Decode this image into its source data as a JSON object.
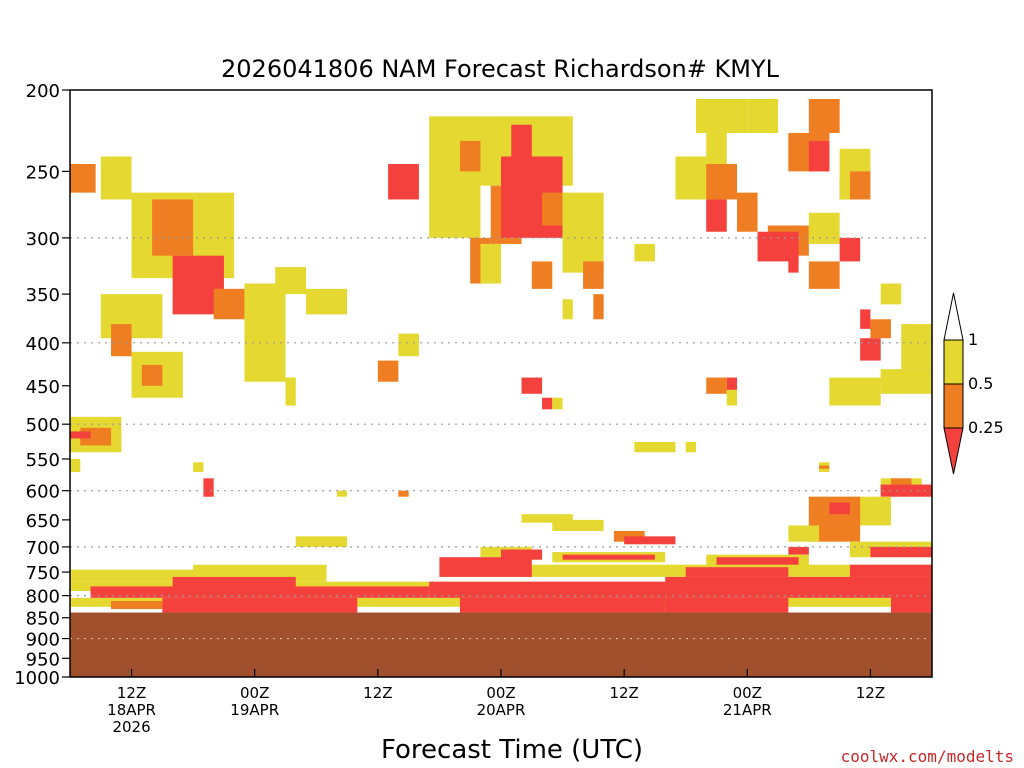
{
  "chart_data": {
    "type": "heatmap",
    "title": "2026041806 NAM Forecast Richardson# KMYL",
    "xlabel": "Forecast Time (UTC)",
    "credit": "coolwx.com/modelts",
    "y_scale": "log-pressure",
    "ylim": [
      1000,
      200
    ],
    "yticks": [
      200,
      250,
      300,
      350,
      400,
      450,
      500,
      550,
      600,
      650,
      700,
      750,
      800,
      850,
      900,
      950,
      1000
    ],
    "y_gridlines": [
      300,
      400,
      500,
      600,
      700,
      800,
      900,
      1000
    ],
    "xlim_hours": [
      0,
      84
    ],
    "xticks": [
      {
        "hour": 6,
        "lines": [
          "12Z",
          "18APR",
          "2026"
        ]
      },
      {
        "hour": 18,
        "lines": [
          "00Z",
          "19APR"
        ]
      },
      {
        "hour": 30,
        "lines": [
          "12Z"
        ]
      },
      {
        "hour": 42,
        "lines": [
          "00Z",
          "20APR"
        ]
      },
      {
        "hour": 54,
        "lines": [
          "12Z"
        ]
      },
      {
        "hour": 66,
        "lines": [
          "00Z",
          "21APR"
        ]
      },
      {
        "hour": 78,
        "lines": [
          "12Z"
        ]
      }
    ],
    "colorbar": {
      "bounds": [
        "1",
        "0.5",
        "0.25"
      ],
      "colors": {
        "yellow": "#e4d831",
        "orange": "#ef7e22",
        "red": "#f5413d",
        "ground": "#a0502c"
      }
    },
    "ground_level_hPa": 838,
    "regions": [
      {
        "level": "yellow",
        "t0": 3,
        "t1": 6,
        "p0": 240,
        "p1": 270
      },
      {
        "level": "orange",
        "t0": 0,
        "t1": 2.5,
        "p0": 245,
        "p1": 265
      },
      {
        "level": "yellow",
        "t0": 6,
        "t1": 16,
        "p0": 265,
        "p1": 335
      },
      {
        "level": "orange",
        "t0": 8,
        "t1": 12,
        "p0": 270,
        "p1": 315
      },
      {
        "level": "red",
        "t0": 10,
        "t1": 15,
        "p0": 315,
        "p1": 370
      },
      {
        "level": "orange",
        "t0": 14,
        "t1": 17,
        "p0": 345,
        "p1": 375
      },
      {
        "level": "yellow",
        "t0": 17,
        "t1": 21,
        "p0": 340,
        "p1": 445
      },
      {
        "level": "yellow",
        "t0": 3,
        "t1": 9,
        "p0": 350,
        "p1": 395
      },
      {
        "level": "orange",
        "t0": 4,
        "t1": 6,
        "p0": 380,
        "p1": 415
      },
      {
        "level": "yellow",
        "t0": 6,
        "t1": 11,
        "p0": 410,
        "p1": 465
      },
      {
        "level": "orange",
        "t0": 7,
        "t1": 9,
        "p0": 425,
        "p1": 450
      },
      {
        "level": "yellow",
        "t0": 20,
        "t1": 23,
        "p0": 325,
        "p1": 350
      },
      {
        "level": "yellow",
        "t0": 23,
        "t1": 27,
        "p0": 345,
        "p1": 370
      },
      {
        "level": "yellow",
        "t0": 21,
        "t1": 22,
        "p0": 440,
        "p1": 475
      },
      {
        "level": "yellow",
        "t0": 32,
        "t1": 34,
        "p0": 390,
        "p1": 415
      },
      {
        "level": "orange",
        "t0": 30,
        "t1": 32,
        "p0": 420,
        "p1": 445
      },
      {
        "level": "yellow",
        "t0": 35,
        "t1": 40,
        "p0": 215,
        "p1": 300
      },
      {
        "level": "orange",
        "t0": 38,
        "t1": 41,
        "p0": 230,
        "p1": 250
      },
      {
        "level": "orange",
        "t0": 39,
        "t1": 41,
        "p0": 300,
        "p1": 340
      },
      {
        "level": "red",
        "t0": 31,
        "t1": 34,
        "p0": 245,
        "p1": 270
      },
      {
        "level": "yellow",
        "t0": 40,
        "t1": 49,
        "p0": 215,
        "p1": 260
      },
      {
        "level": "orange",
        "t0": 41,
        "t1": 44,
        "p0": 260,
        "p1": 305
      },
      {
        "level": "red",
        "t0": 42,
        "t1": 48,
        "p0": 240,
        "p1": 300
      },
      {
        "level": "red",
        "t0": 43,
        "t1": 45,
        "p0": 220,
        "p1": 250
      },
      {
        "level": "yellow",
        "t0": 40,
        "t1": 42,
        "p0": 305,
        "p1": 340
      },
      {
        "level": "red",
        "t0": 49,
        "t1": 51,
        "p0": 290,
        "p1": 325
      },
      {
        "level": "orange",
        "t0": 46,
        "t1": 48,
        "p0": 265,
        "p1": 290
      },
      {
        "level": "yellow",
        "t0": 48,
        "t1": 52,
        "p0": 265,
        "p1": 330
      },
      {
        "level": "orange",
        "t0": 50,
        "t1": 52,
        "p0": 320,
        "p1": 345
      },
      {
        "level": "orange",
        "t0": 45,
        "t1": 47,
        "p0": 320,
        "p1": 345
      },
      {
        "level": "orange",
        "t0": 51,
        "t1": 52,
        "p0": 350,
        "p1": 375
      },
      {
        "level": "yellow",
        "t0": 48,
        "t1": 49,
        "p0": 355,
        "p1": 375
      },
      {
        "level": "red",
        "t0": 44,
        "t1": 46,
        "p0": 440,
        "p1": 460
      },
      {
        "level": "red",
        "t0": 46,
        "t1": 47,
        "p0": 465,
        "p1": 480
      },
      {
        "level": "yellow",
        "t0": 47,
        "t1": 48,
        "p0": 465,
        "p1": 480
      },
      {
        "level": "yellow",
        "t0": 61,
        "t1": 66,
        "p0": 205,
        "p1": 225
      },
      {
        "level": "yellow",
        "t0": 62,
        "t1": 64,
        "p0": 225,
        "p1": 245
      },
      {
        "level": "orange",
        "t0": 61,
        "t1": 65,
        "p0": 245,
        "p1": 270
      },
      {
        "level": "yellow",
        "t0": 59,
        "t1": 62,
        "p0": 240,
        "p1": 270
      },
      {
        "level": "red",
        "t0": 62,
        "t1": 64,
        "p0": 270,
        "p1": 295
      },
      {
        "level": "orange",
        "t0": 65,
        "t1": 67,
        "p0": 265,
        "p1": 295
      },
      {
        "level": "yellow",
        "t0": 66,
        "t1": 69,
        "p0": 205,
        "p1": 225
      },
      {
        "level": "orange",
        "t0": 72,
        "t1": 75,
        "p0": 205,
        "p1": 225
      },
      {
        "level": "orange",
        "t0": 70,
        "t1": 74,
        "p0": 225,
        "p1": 250
      },
      {
        "level": "red",
        "t0": 72,
        "t1": 74,
        "p0": 230,
        "p1": 250
      },
      {
        "level": "red",
        "t0": 75,
        "t1": 77,
        "p0": 255,
        "p1": 270
      },
      {
        "level": "yellow",
        "t0": 75,
        "t1": 78,
        "p0": 235,
        "p1": 270
      },
      {
        "level": "orange",
        "t0": 76,
        "t1": 78,
        "p0": 250,
        "p1": 270
      },
      {
        "level": "orange",
        "t0": 68,
        "t1": 72,
        "p0": 290,
        "p1": 315
      },
      {
        "level": "red",
        "t0": 67,
        "t1": 71,
        "p0": 295,
        "p1": 320
      },
      {
        "level": "red",
        "t0": 70,
        "t1": 71,
        "p0": 310,
        "p1": 330
      },
      {
        "level": "yellow",
        "t0": 72,
        "t1": 75,
        "p0": 280,
        "p1": 305
      },
      {
        "level": "red",
        "t0": 75,
        "t1": 77,
        "p0": 300,
        "p1": 320
      },
      {
        "level": "orange",
        "t0": 72,
        "t1": 75,
        "p0": 320,
        "p1": 345
      },
      {
        "level": "yellow",
        "t0": 55,
        "t1": 57,
        "p0": 305,
        "p1": 320
      },
      {
        "level": "yellow",
        "t0": 81,
        "t1": 84,
        "p0": 380,
        "p1": 430
      },
      {
        "level": "red",
        "t0": 77,
        "t1": 79,
        "p0": 395,
        "p1": 420
      },
      {
        "level": "orange",
        "t0": 78,
        "t1": 80,
        "p0": 375,
        "p1": 395
      },
      {
        "level": "red",
        "t0": 77,
        "t1": 78,
        "p0": 365,
        "p1": 385
      },
      {
        "level": "yellow",
        "t0": 74,
        "t1": 79,
        "p0": 440,
        "p1": 475
      },
      {
        "level": "yellow",
        "t0": 79,
        "t1": 84,
        "p0": 430,
        "p1": 460
      },
      {
        "level": "yellow",
        "t0": 79,
        "t1": 81,
        "p0": 340,
        "p1": 360
      },
      {
        "level": "orange",
        "t0": 62,
        "t1": 64,
        "p0": 440,
        "p1": 460
      },
      {
        "level": "yellow",
        "t0": 64,
        "t1": 65,
        "p0": 440,
        "p1": 475
      },
      {
        "level": "red",
        "t0": 64,
        "t1": 65,
        "p0": 440,
        "p1": 455
      },
      {
        "level": "yellow",
        "t0": 0,
        "t1": 5,
        "p0": 490,
        "p1": 540
      },
      {
        "level": "orange",
        "t0": 1,
        "t1": 4,
        "p0": 505,
        "p1": 530
      },
      {
        "level": "red",
        "t0": 0,
        "t1": 2,
        "p0": 510,
        "p1": 520
      },
      {
        "level": "yellow",
        "t0": 0,
        "t1": 1,
        "p0": 550,
        "p1": 570
      },
      {
        "level": "yellow",
        "t0": 55,
        "t1": 59,
        "p0": 525,
        "p1": 540
      },
      {
        "level": "yellow",
        "t0": 60,
        "t1": 61,
        "p0": 525,
        "p1": 540
      },
      {
        "level": "red",
        "t0": 13,
        "t1": 14,
        "p0": 580,
        "p1": 610
      },
      {
        "level": "yellow",
        "t0": 12,
        "t1": 13,
        "p0": 555,
        "p1": 570
      },
      {
        "level": "yellow",
        "t0": 73,
        "t1": 74,
        "p0": 555,
        "p1": 570
      },
      {
        "level": "orange",
        "t0": 73,
        "t1": 74,
        "p0": 560,
        "p1": 565
      },
      {
        "level": "orange",
        "t0": 32,
        "t1": 33,
        "p0": 600,
        "p1": 610
      },
      {
        "level": "yellow",
        "t0": 26,
        "t1": 27,
        "p0": 600,
        "p1": 610
      },
      {
        "level": "yellow",
        "t0": 79,
        "t1": 83,
        "p0": 580,
        "p1": 605
      },
      {
        "level": "red",
        "t0": 79,
        "t1": 84,
        "p0": 590,
        "p1": 610
      },
      {
        "level": "orange",
        "t0": 80,
        "t1": 82,
        "p0": 580,
        "p1": 590
      },
      {
        "level": "yellow",
        "t0": 72,
        "t1": 80,
        "p0": 610,
        "p1": 660
      },
      {
        "level": "orange",
        "t0": 72,
        "t1": 77,
        "p0": 610,
        "p1": 690
      },
      {
        "level": "red",
        "t0": 74,
        "t1": 76,
        "p0": 620,
        "p1": 640
      },
      {
        "level": "yellow",
        "t0": 44,
        "t1": 49,
        "p0": 640,
        "p1": 655
      },
      {
        "level": "yellow",
        "t0": 47,
        "t1": 52,
        "p0": 650,
        "p1": 670
      },
      {
        "level": "orange",
        "t0": 53,
        "t1": 56,
        "p0": 670,
        "p1": 690
      },
      {
        "level": "red",
        "t0": 54,
        "t1": 59,
        "p0": 680,
        "p1": 695
      },
      {
        "level": "yellow",
        "t0": 22,
        "t1": 27,
        "p0": 680,
        "p1": 700
      },
      {
        "level": "yellow",
        "t0": 70,
        "t1": 73,
        "p0": 660,
        "p1": 690
      },
      {
        "level": "red",
        "t0": 70,
        "t1": 72,
        "p0": 700,
        "p1": 715
      },
      {
        "level": "yellow",
        "t0": 76,
        "t1": 84,
        "p0": 690,
        "p1": 720
      },
      {
        "level": "red",
        "t0": 78,
        "t1": 84,
        "p0": 700,
        "p1": 720
      },
      {
        "level": "yellow",
        "t0": 40,
        "t1": 45,
        "p0": 700,
        "p1": 720
      },
      {
        "level": "red",
        "t0": 42,
        "t1": 46,
        "p0": 705,
        "p1": 725
      },
      {
        "level": "yellow",
        "t0": 47,
        "t1": 58,
        "p0": 710,
        "p1": 730
      },
      {
        "level": "red",
        "t0": 48,
        "t1": 57,
        "p0": 715,
        "p1": 725
      },
      {
        "level": "yellow",
        "t0": 62,
        "t1": 72,
        "p0": 715,
        "p1": 740
      },
      {
        "level": "red",
        "t0": 63,
        "t1": 71,
        "p0": 720,
        "p1": 740
      },
      {
        "level": "yellow",
        "t0": 0,
        "t1": 25,
        "p0": 745,
        "p1": 770
      },
      {
        "level": "yellow",
        "t0": 12,
        "t1": 25,
        "p0": 735,
        "p1": 760
      },
      {
        "level": "yellow",
        "t0": 36,
        "t1": 84,
        "p0": 735,
        "p1": 760
      },
      {
        "level": "red",
        "t0": 36,
        "t1": 45,
        "p0": 720,
        "p1": 760
      },
      {
        "level": "red",
        "t0": 60,
        "t1": 70,
        "p0": 740,
        "p1": 760
      },
      {
        "level": "red",
        "t0": 76,
        "t1": 84,
        "p0": 735,
        "p1": 760
      },
      {
        "level": "yellow",
        "t0": 0,
        "t1": 84,
        "p0": 770,
        "p1": 790
      },
      {
        "level": "red",
        "t0": 2,
        "t1": 35,
        "p0": 780,
        "p1": 805
      },
      {
        "level": "red",
        "t0": 10,
        "t1": 22,
        "p0": 760,
        "p1": 790
      },
      {
        "level": "red",
        "t0": 35,
        "t1": 60,
        "p0": 770,
        "p1": 805
      },
      {
        "level": "red",
        "t0": 58,
        "t1": 84,
        "p0": 760,
        "p1": 805
      },
      {
        "level": "yellow",
        "t0": 0,
        "t1": 84,
        "p0": 805,
        "p1": 825
      },
      {
        "level": "red",
        "t0": 9,
        "t1": 28,
        "p0": 805,
        "p1": 838
      },
      {
        "level": "orange",
        "t0": 4,
        "t1": 9,
        "p0": 812,
        "p1": 830
      },
      {
        "level": "red",
        "t0": 38,
        "t1": 58,
        "p0": 805,
        "p1": 838
      },
      {
        "level": "red",
        "t0": 58,
        "t1": 70,
        "p0": 805,
        "p1": 838
      },
      {
        "level": "red",
        "t0": 80,
        "t1": 84,
        "p0": 800,
        "p1": 838
      }
    ]
  }
}
